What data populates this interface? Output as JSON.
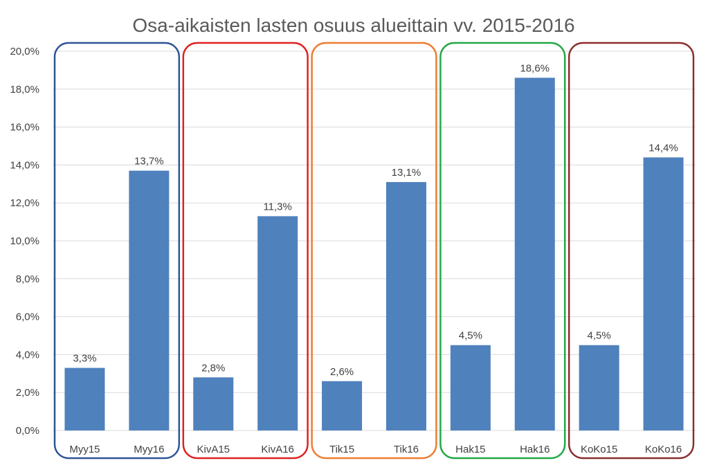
{
  "chart_data": {
    "type": "bar",
    "title": "Osa-aikaisten lasten osuus alueittain vv. 2015-2016",
    "xlabel": "",
    "ylabel": "",
    "categories": [
      "Myy15",
      "Myy16",
      "KivA15",
      "KivA16",
      "Tik15",
      "Tik16",
      "Hak15",
      "Hak16",
      "KoKo15",
      "KoKo16"
    ],
    "values": [
      3.3,
      13.7,
      2.8,
      11.3,
      2.6,
      13.1,
      4.5,
      18.6,
      4.5,
      14.4
    ],
    "data_labels": [
      "3,3%",
      "13,7%",
      "2,8%",
      "11,3%",
      "2,6%",
      "13,1%",
      "4,5%",
      "18,6%",
      "4,5%",
      "14,4%"
    ],
    "ylim": [
      0,
      20
    ],
    "yticks": [
      0,
      2,
      4,
      6,
      8,
      10,
      12,
      14,
      16,
      18,
      20
    ],
    "ytick_labels": [
      "0,0%",
      "2,0%",
      "4,0%",
      "6,0%",
      "8,0%",
      "10,0%",
      "12,0%",
      "14,0%",
      "16,0%",
      "18,0%",
      "20,0%"
    ],
    "grid": true,
    "legend": "none",
    "bar_color": "#4f81bd",
    "groups": [
      {
        "categories": [
          "Myy15",
          "Myy16"
        ],
        "color": "#2f5496"
      },
      {
        "categories": [
          "KivA15",
          "KivA16"
        ],
        "color": "#e02020"
      },
      {
        "categories": [
          "Tik15",
          "Tik16"
        ],
        "color": "#ed7d31"
      },
      {
        "categories": [
          "Hak15",
          "Hak16"
        ],
        "color": "#22a845"
      },
      {
        "categories": [
          "KoKo15",
          "KoKo16"
        ],
        "color": "#8b2e2e"
      }
    ]
  }
}
